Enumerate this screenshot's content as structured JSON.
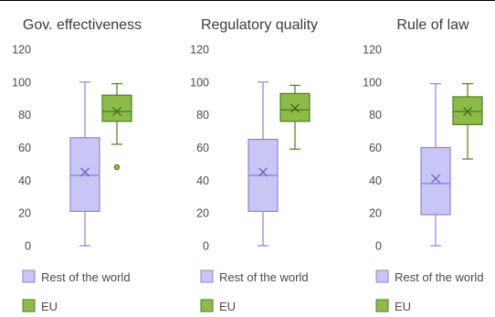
{
  "chart_data": [
    {
      "type": "box",
      "title": "Gov. effectiveness",
      "ylim": [
        0,
        120
      ],
      "yticks": [
        "0",
        "20",
        "40",
        "60",
        "80",
        "100",
        "120"
      ],
      "series": [
        {
          "name": "Rest of the world",
          "color": "#c9c6f5",
          "stroke": "#8b84d8",
          "min": 0,
          "q1": 21,
          "median": 43,
          "mean": 45,
          "q3": 66,
          "max": 100,
          "outliers": []
        },
        {
          "name": "EU",
          "color": "#8dbb4a",
          "stroke": "#4e7f1f",
          "min": 62,
          "q1": 76,
          "median": 82,
          "mean": 82,
          "q3": 92,
          "max": 99,
          "outliers": [
            48
          ]
        }
      ]
    },
    {
      "type": "box",
      "title": "Regulatory quality",
      "ylim": [
        0,
        120
      ],
      "yticks": [
        "0",
        "20",
        "40",
        "60",
        "80",
        "100",
        "120"
      ],
      "series": [
        {
          "name": "Rest of the world",
          "color": "#c9c6f5",
          "stroke": "#8b84d8",
          "min": 0,
          "q1": 21,
          "median": 43,
          "mean": 45,
          "q3": 65,
          "max": 100,
          "outliers": []
        },
        {
          "name": "EU",
          "color": "#8dbb4a",
          "stroke": "#4e7f1f",
          "min": 59,
          "q1": 76,
          "median": 83,
          "mean": 84,
          "q3": 93,
          "max": 98,
          "outliers": []
        }
      ]
    },
    {
      "type": "box",
      "title": "Rule of law",
      "ylim": [
        0,
        120
      ],
      "yticks": [
        "0",
        "20",
        "40",
        "60",
        "80",
        "100",
        "120"
      ],
      "series": [
        {
          "name": "Rest of the world",
          "color": "#c9c6f5",
          "stroke": "#8b84d8",
          "min": 0,
          "q1": 19,
          "median": 38,
          "mean": 41,
          "q3": 60,
          "max": 99,
          "outliers": []
        },
        {
          "name": "EU",
          "color": "#8dbb4a",
          "stroke": "#4e7f1f",
          "min": 53,
          "q1": 74,
          "median": 82,
          "mean": 82,
          "q3": 91,
          "max": 99,
          "outliers": []
        }
      ]
    }
  ]
}
